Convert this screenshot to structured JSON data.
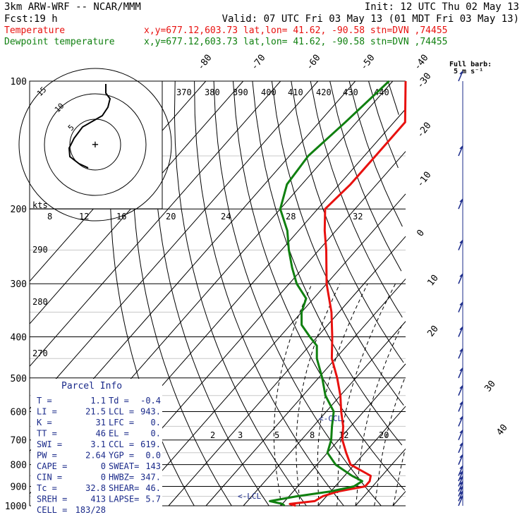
{
  "header": {
    "model": "3km ARW-WRF -- NCAR/MMM",
    "init": "Init: 12 UTC Thu 02 May 13",
    "fcst_label": "Fcst:",
    "fcst_hours": "19 h",
    "valid": "Valid: 07 UTC Fri 03 May 13 (01 MDT Fri 03 May 13)",
    "temp_legend": "Temperature",
    "temp_loc": "x,y=677.12,603.73   lat,lon= 41.62, -90.58  stn=DVN ,74455",
    "dew_legend": "Dewpoint temperature",
    "dew_loc": "x,y=677.12,603.73   lat,lon= 41.62, -90.58  stn=DVN ,74455",
    "barb_title_1": "Full barb:",
    "barb_title_2": "5 m s⁻¹"
  },
  "colors": {
    "temperature": "#e8110f",
    "dewpoint": "#108010",
    "parcel_text": "#1a2a8a",
    "barbs": "#1a2a8a"
  },
  "hodograph": {
    "units_label": "kts",
    "speed_labels": [
      "8",
      "12",
      "16",
      "20",
      "24",
      "28",
      "32"
    ],
    "ring_labels": [
      "5",
      "10",
      "15"
    ]
  },
  "parcel_info": {
    "title": "Parcel Info",
    "rows": [
      [
        "T    =",
        "1.1",
        "Td  =",
        "-0.4"
      ],
      [
        "LI   =",
        "21.5",
        "LCL =",
        "943."
      ],
      [
        "K    =",
        "31",
        "LFC =",
        "0."
      ],
      [
        "TT   =",
        "46",
        "EL  =",
        "0."
      ],
      [
        "SWI  =",
        "3.1",
        "CCL =",
        "619."
      ],
      [
        "PW   =",
        "2.64",
        "YGP =",
        "0.0"
      ],
      [
        "CAPE =",
        "0",
        "SWEAT=",
        "143"
      ],
      [
        "CIN  =",
        "0",
        "HWBZ=",
        "347."
      ],
      [
        "Tc   =",
        "32.8",
        "SHEAR=",
        "46."
      ],
      [
        "SREH =",
        "413",
        "LAPSE=",
        "5.7"
      ],
      [
        "CELL =",
        "183/28",
        "",
        ""
      ]
    ]
  },
  "markers": {
    "ccl": "<-CCL",
    "lcl": "<-LCL"
  },
  "mixing_ratio_labels": [
    "2",
    "3",
    "5",
    "8",
    "12",
    "20"
  ],
  "theta_labels": [
    "270",
    "280",
    "290"
  ],
  "theta_e_labels": [
    "370",
    "380",
    "390",
    "400",
    "410",
    "420",
    "430",
    "440"
  ],
  "chart_data": {
    "type": "line",
    "diagram": "skew-T log-p",
    "y_axis": {
      "unit": "hPa",
      "scale": "log",
      "reversed": true,
      "range": [
        1000,
        100
      ],
      "ticks": [
        1000,
        900,
        800,
        700,
        600,
        500,
        400,
        300,
        200,
        100
      ]
    },
    "x_axis": {
      "unit": "degC",
      "isotherm_labels": [
        40,
        30,
        20,
        10,
        0,
        -10,
        -20,
        -30,
        -40,
        -50,
        -60,
        -70,
        -80
      ]
    },
    "series": [
      {
        "name": "Temperature",
        "points": [
          [
            1000,
            4
          ],
          [
            990,
            2
          ],
          [
            975,
            8
          ],
          [
            950,
            9
          ],
          [
            925,
            12
          ],
          [
            900,
            18
          ],
          [
            875,
            18
          ],
          [
            850,
            17
          ],
          [
            800,
            9
          ],
          [
            750,
            5
          ],
          [
            700,
            1
          ],
          [
            650,
            -2
          ],
          [
            600,
            -6
          ],
          [
            550,
            -10
          ],
          [
            500,
            -15
          ],
          [
            450,
            -21
          ],
          [
            400,
            -26
          ],
          [
            350,
            -32
          ],
          [
            300,
            -40
          ],
          [
            250,
            -48
          ],
          [
            225,
            -53
          ],
          [
            200,
            -58
          ],
          [
            175,
            -57
          ],
          [
            150,
            -57
          ],
          [
            125,
            -57
          ],
          [
            100,
            -58
          ]
        ]
      },
      {
        "name": "Dewpoint temperature",
        "points": [
          [
            1000,
            1
          ],
          [
            990,
            0
          ],
          [
            975,
            -4
          ],
          [
            950,
            2
          ],
          [
            925,
            10
          ],
          [
            900,
            15
          ],
          [
            875,
            16
          ],
          [
            850,
            12
          ],
          [
            800,
            5
          ],
          [
            750,
            0
          ],
          [
            700,
            -2
          ],
          [
            650,
            -5
          ],
          [
            600,
            -8
          ],
          [
            550,
            -14
          ],
          [
            500,
            -19
          ],
          [
            450,
            -25
          ],
          [
            420,
            -28
          ],
          [
            400,
            -32
          ],
          [
            375,
            -37
          ],
          [
            350,
            -40
          ],
          [
            325,
            -42
          ],
          [
            300,
            -48
          ],
          [
            275,
            -53
          ],
          [
            250,
            -58
          ],
          [
            225,
            -63
          ],
          [
            200,
            -70
          ],
          [
            175,
            -74
          ],
          [
            150,
            -75
          ],
          [
            125,
            -73
          ],
          [
            100,
            -71
          ]
        ]
      }
    ],
    "wind_profile": {
      "pressures": [
        1000,
        975,
        950,
        925,
        900,
        875,
        850,
        800,
        750,
        700,
        650,
        600,
        550,
        500,
        450,
        400,
        350,
        300,
        250,
        200,
        150,
        100
      ]
    }
  }
}
